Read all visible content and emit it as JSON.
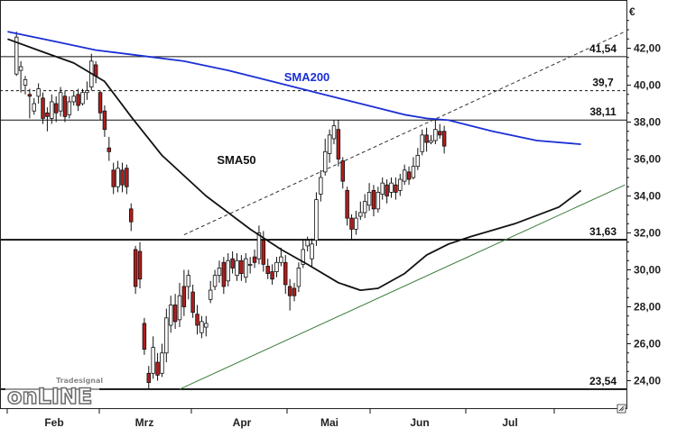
{
  "chart_data": {
    "type": "candlestick",
    "currency_label": "€",
    "ylim": [
      22.5,
      43.5
    ],
    "y_ticks": [
      "42,00",
      "40,00",
      "38,00",
      "36,00",
      "34,00",
      "32,00",
      "30,00",
      "28,00",
      "26,00",
      "24,00"
    ],
    "months": [
      "Feb",
      "Mrz",
      "Apr",
      "Mai",
      "Jun",
      "Jul"
    ],
    "grid": false,
    "horizontal_levels": [
      {
        "value": 41.54,
        "label": "41,54",
        "style": "solid"
      },
      {
        "value": 39.7,
        "label": "39,7",
        "style": "dashed"
      },
      {
        "value": 38.11,
        "label": "38,11",
        "style": "solid"
      },
      {
        "value": 31.63,
        "label": "31,63",
        "style": "solid-bold"
      },
      {
        "value": 23.54,
        "label": "23,54",
        "style": "solid-bold"
      }
    ],
    "trendlines": [
      {
        "name": "support",
        "color": "#3a7d3a",
        "style": "solid",
        "from": [
          39,
          23.54
        ],
        "to": [
          140,
          34.6
        ]
      },
      {
        "name": "resistance-projection",
        "color": "#333333",
        "style": "dashed",
        "from": [
          40,
          31.9
        ],
        "to": [
          140,
          42.9
        ]
      }
    ],
    "sma_labels": [
      {
        "text": "SMA200",
        "color": "#1b2fd6"
      },
      {
        "text": "SMA50",
        "color": "#111111"
      }
    ],
    "sma200": [
      [
        0,
        42.9
      ],
      [
        10,
        42.4
      ],
      [
        20,
        41.9
      ],
      [
        30,
        41.6
      ],
      [
        40,
        41.3
      ],
      [
        50,
        40.8
      ],
      [
        60,
        40.2
      ],
      [
        70,
        39.6
      ],
      [
        80,
        39.0
      ],
      [
        90,
        38.4
      ],
      [
        95,
        38.2
      ],
      [
        100,
        38.1
      ],
      [
        110,
        37.5
      ],
      [
        120,
        37.0
      ],
      [
        130,
        36.8
      ]
    ],
    "sma50": [
      [
        0,
        42.5
      ],
      [
        8,
        41.8
      ],
      [
        15,
        41.2
      ],
      [
        22,
        40.2
      ],
      [
        28,
        38.3
      ],
      [
        35,
        36.2
      ],
      [
        45,
        34.0
      ],
      [
        55,
        32.2
      ],
      [
        62,
        31.1
      ],
      [
        68,
        30.3
      ],
      [
        75,
        29.3
      ],
      [
        80,
        28.9
      ],
      [
        84,
        29.0
      ],
      [
        90,
        29.8
      ],
      [
        95,
        30.8
      ],
      [
        100,
        31.4
      ],
      [
        105,
        31.8
      ],
      [
        115,
        32.5
      ],
      [
        125,
        33.4
      ],
      [
        130,
        34.3
      ]
    ],
    "candles": [
      [
        40.6,
        42.6,
        40.5,
        42.9
      ],
      [
        40.8,
        41.0,
        39.6,
        41.3
      ],
      [
        40.0,
        40.3,
        39.5,
        40.5
      ],
      [
        39.5,
        39.4,
        38.2,
        39.8
      ],
      [
        38.6,
        39.0,
        38.4,
        39.3
      ],
      [
        39.4,
        39.8,
        39.0,
        40.1
      ],
      [
        39.3,
        38.2,
        37.9,
        39.6
      ],
      [
        38.5,
        38.3,
        37.5,
        38.8
      ],
      [
        38.2,
        39.1,
        37.9,
        39.5
      ],
      [
        39.0,
        38.5,
        38.0,
        39.4
      ],
      [
        38.6,
        39.6,
        38.3,
        39.9
      ],
      [
        39.4,
        38.3,
        38.0,
        39.7
      ],
      [
        38.4,
        39.1,
        38.2,
        39.4
      ],
      [
        39.1,
        39.4,
        38.9,
        39.7
      ],
      [
        39.5,
        38.9,
        38.6,
        39.8
      ],
      [
        39.0,
        39.6,
        38.9,
        39.8
      ],
      [
        39.6,
        39.7,
        39.2,
        40.2
      ],
      [
        39.9,
        41.3,
        39.7,
        41.7
      ],
      [
        41.1,
        40.5,
        40.1,
        41.3
      ],
      [
        39.6,
        38.5,
        38.1,
        39.7
      ],
      [
        38.6,
        37.6,
        37.2,
        38.9
      ],
      [
        36.6,
        36.4,
        35.9,
        37.2
      ],
      [
        35.4,
        34.5,
        34.1,
        35.8
      ],
      [
        34.5,
        35.5,
        34.2,
        35.9
      ],
      [
        35.4,
        34.6,
        34.2,
        35.8
      ],
      [
        35.5,
        34.5,
        34.1,
        35.7
      ],
      [
        33.3,
        32.6,
        32.1,
        33.6
      ],
      [
        31.1,
        29.1,
        28.7,
        31.3
      ],
      [
        31.0,
        29.5,
        29.0,
        31.5
      ],
      [
        27.1,
        25.7,
        25.4,
        27.4
      ],
      [
        24.4,
        23.9,
        23.54,
        24.8
      ],
      [
        24.4,
        25.8,
        24.1,
        26.4
      ],
      [
        25.0,
        24.3,
        24.0,
        25.5
      ],
      [
        24.4,
        25.5,
        24.2,
        26.0
      ],
      [
        25.5,
        27.4,
        25.0,
        27.9
      ],
      [
        27.0,
        28.1,
        26.6,
        28.6
      ],
      [
        28.1,
        27.2,
        26.8,
        28.7
      ],
      [
        27.3,
        28.6,
        26.9,
        29.3
      ],
      [
        29.1,
        28.0,
        27.5,
        30.0
      ],
      [
        29.1,
        29.7,
        28.4,
        30.0
      ],
      [
        28.8,
        27.7,
        27.4,
        29.2
      ],
      [
        27.6,
        27.0,
        26.5,
        28.1
      ],
      [
        26.6,
        27.2,
        26.3,
        27.5
      ],
      [
        26.9,
        27.1,
        26.4,
        27.5
      ],
      [
        28.4,
        28.9,
        28.2,
        29.4
      ],
      [
        29.1,
        29.7,
        28.9,
        30.0
      ],
      [
        29.7,
        30.1,
        29.3,
        30.5
      ],
      [
        30.4,
        29.1,
        28.7,
        30.7
      ],
      [
        29.4,
        30.5,
        29.1,
        30.9
      ],
      [
        30.6,
        30.1,
        29.8,
        31.0
      ],
      [
        29.7,
        30.5,
        29.4,
        30.9
      ],
      [
        30.5,
        29.8,
        29.4,
        30.8
      ],
      [
        29.6,
        30.6,
        29.3,
        30.9
      ],
      [
        30.3,
        30.3,
        29.8,
        30.7
      ],
      [
        30.7,
        30.4,
        30.1,
        31.1
      ],
      [
        30.6,
        32.0,
        30.3,
        32.4
      ],
      [
        31.6,
        30.3,
        29.9,
        32.1
      ],
      [
        30.2,
        29.8,
        29.5,
        30.6
      ],
      [
        29.9,
        29.5,
        29.2,
        30.3
      ],
      [
        29.9,
        30.4,
        29.6,
        30.7
      ],
      [
        30.4,
        30.7,
        30.2,
        31.2
      ],
      [
        30.4,
        29.2,
        28.7,
        30.8
      ],
      [
        29.1,
        28.6,
        27.8,
        29.5
      ],
      [
        29.0,
        28.6,
        28.3,
        29.3
      ],
      [
        29.1,
        30.1,
        28.8,
        30.4
      ],
      [
        30.3,
        31.1,
        30.1,
        31.6
      ],
      [
        31.3,
        31.6,
        31.0,
        31.8
      ],
      [
        30.6,
        31.4,
        30.2,
        31.7
      ],
      [
        31.6,
        33.8,
        31.3,
        34.2
      ],
      [
        34.1,
        35.0,
        33.7,
        35.4
      ],
      [
        35.3,
        36.4,
        35.1,
        37.1
      ],
      [
        36.3,
        37.3,
        35.8,
        37.6
      ],
      [
        37.1,
        37.8,
        36.8,
        38.1
      ],
      [
        37.6,
        36.0,
        35.6,
        38.1
      ],
      [
        35.9,
        34.8,
        34.4,
        36.1
      ],
      [
        34.3,
        32.8,
        32.4,
        34.5
      ],
      [
        32.8,
        32.2,
        31.6,
        33.0
      ],
      [
        32.2,
        32.8,
        31.9,
        33.2
      ],
      [
        32.9,
        33.1,
        32.7,
        33.7
      ],
      [
        33.1,
        33.7,
        32.8,
        34.1
      ],
      [
        33.5,
        34.2,
        33.2,
        34.7
      ],
      [
        34.3,
        33.3,
        32.9,
        34.6
      ],
      [
        33.3,
        34.2,
        33.1,
        34.5
      ],
      [
        34.1,
        34.7,
        33.8,
        35.0
      ],
      [
        34.6,
        34.0,
        33.6,
        34.9
      ],
      [
        34.2,
        34.7,
        33.9,
        35.0
      ],
      [
        34.6,
        34.2,
        33.8,
        35.0
      ],
      [
        34.3,
        34.9,
        34.0,
        35.2
      ],
      [
        34.8,
        35.4,
        34.6,
        35.7
      ],
      [
        35.3,
        34.9,
        34.6,
        35.6
      ],
      [
        35.0,
        35.6,
        34.9,
        36.1
      ],
      [
        35.6,
        36.2,
        35.4,
        36.6
      ],
      [
        36.4,
        37.3,
        36.2,
        37.6
      ],
      [
        37.3,
        36.9,
        36.4,
        37.7
      ],
      [
        36.9,
        37.0,
        36.8,
        37.3
      ],
      [
        37.0,
        37.6,
        36.8,
        38.1
      ],
      [
        37.5,
        37.3,
        37.1,
        37.9
      ],
      [
        37.5,
        36.7,
        36.3,
        37.8
      ]
    ],
    "timeline_slots": 140
  },
  "logo": {
    "big_text": "onLINE",
    "small_text": "Tradesignal"
  },
  "colors": {
    "up_fill": "#ffffff",
    "down_fill": "#b01d1d",
    "sma200": "#1b2fd6",
    "sma50": "#111111",
    "support": "#3a7d3a",
    "frame": "#222222"
  },
  "icons": {
    "resize_corner": "resize-corner-icon"
  }
}
